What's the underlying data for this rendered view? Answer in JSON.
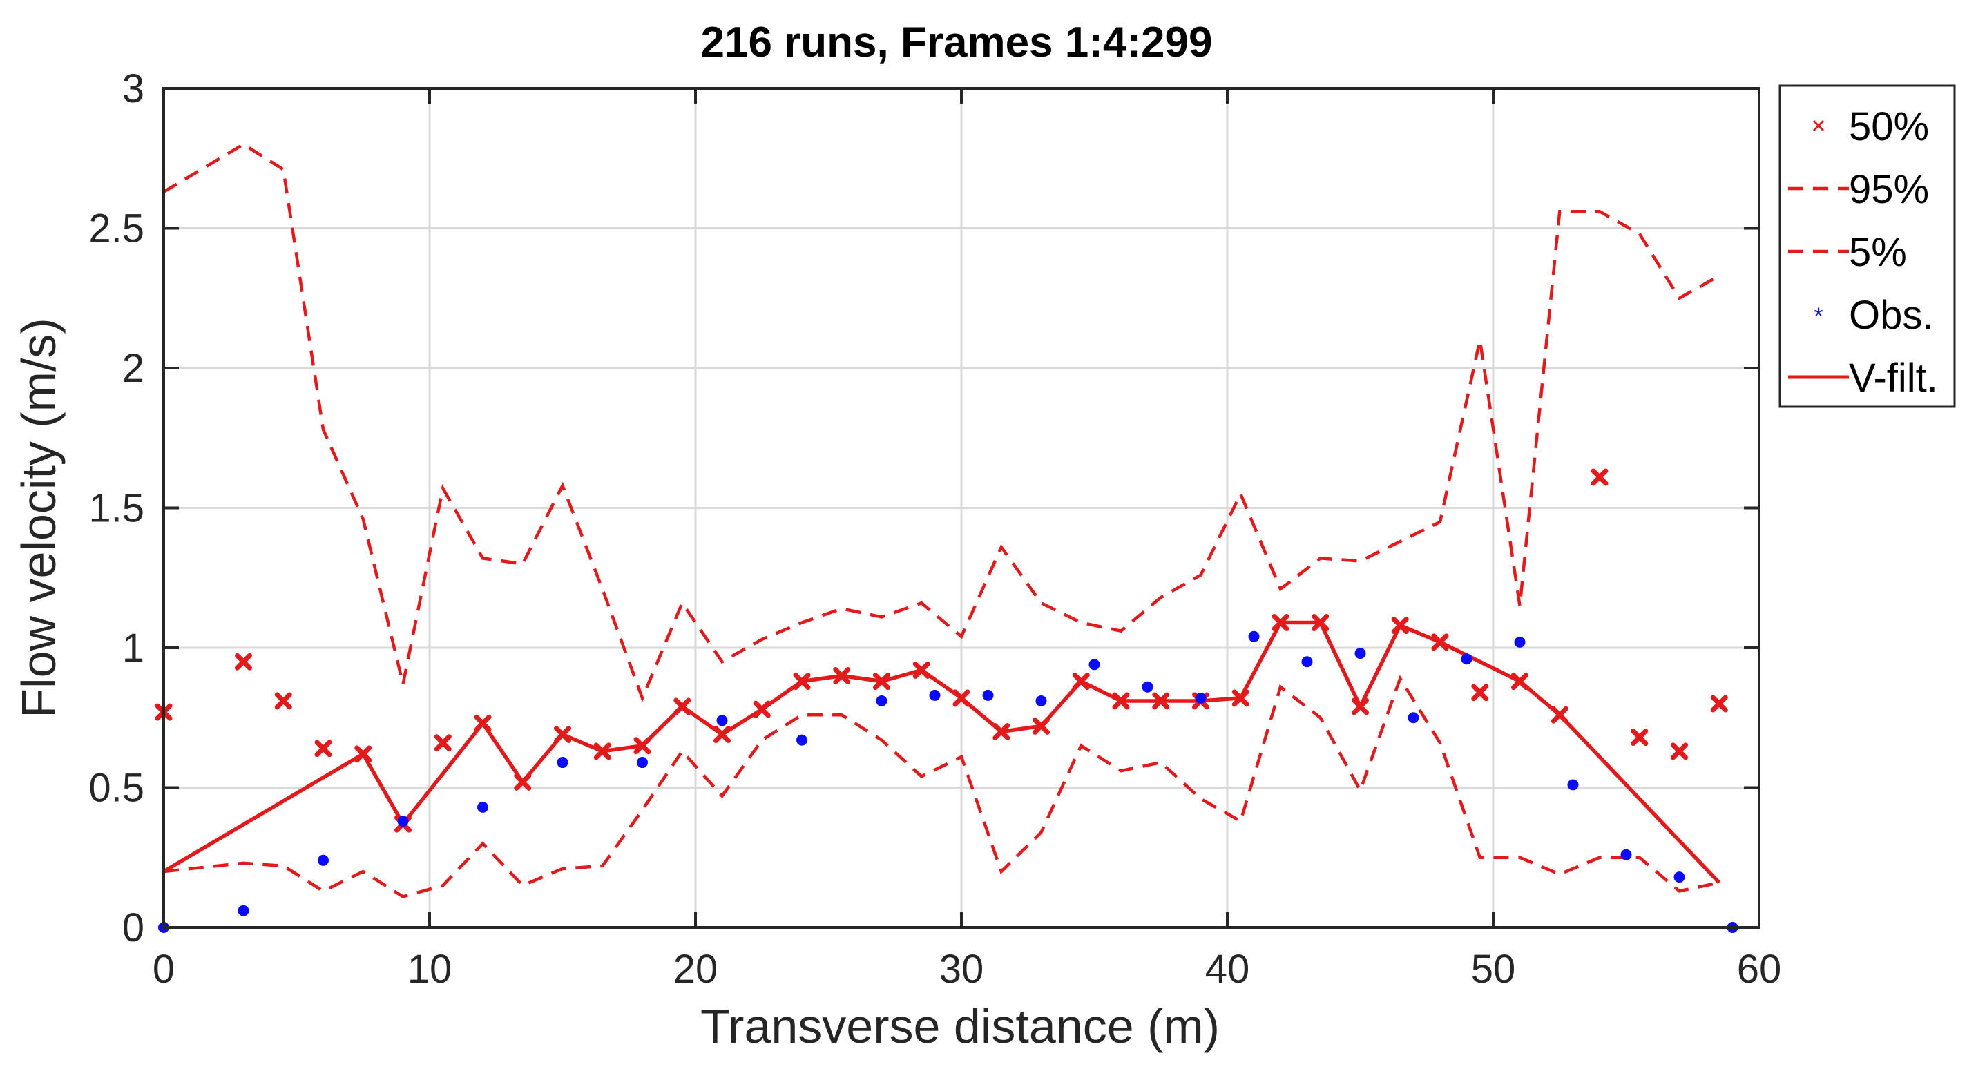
{
  "chart_data": {
    "type": "line",
    "title": "216 runs, Frames 1:4:299",
    "xlabel": "Transverse distance (m)",
    "ylabel": "Flow velocity (m/s)",
    "xlim": [
      0,
      60
    ],
    "ylim": [
      0,
      3
    ],
    "xticks": [
      0,
      10,
      20,
      30,
      40,
      50,
      60
    ],
    "yticks": [
      0,
      0.5,
      1,
      1.5,
      2,
      2.5,
      3
    ],
    "xtick_labels": [
      "0",
      "10",
      "20",
      "30",
      "40",
      "50",
      "60"
    ],
    "ytick_labels": [
      "0",
      "0.5",
      "1",
      "1.5",
      "2",
      "2.5",
      "3"
    ],
    "grid": true,
    "legend_position": "outside-top-right",
    "colors": {
      "red": "#e31a1c",
      "blue": "#0a0aff"
    },
    "legend": [
      {
        "label": "50%",
        "style": "x-marker",
        "color": "#e31a1c"
      },
      {
        "label": "95%",
        "style": "dashed",
        "color": "#e31a1c"
      },
      {
        "label": "5%",
        "style": "dashed",
        "color": "#e31a1c"
      },
      {
        "label": "Obs.",
        "style": "asterisk",
        "color": "#0a0aff"
      },
      {
        "label": "V-filt.",
        "style": "solid",
        "color": "#e31a1c"
      }
    ],
    "series": [
      {
        "name": "50%",
        "x": [
          0,
          3,
          4.5,
          6,
          7.5,
          9,
          10.5,
          12,
          13.5,
          15,
          16.5,
          18,
          19.5,
          21,
          22.5,
          24,
          25.5,
          27,
          28.5,
          30,
          31.5,
          33,
          34.5,
          36,
          37.5,
          39,
          40.5,
          42,
          43.5,
          45,
          46.5,
          48,
          49.5,
          51,
          52.5,
          54,
          55.5,
          57,
          58.5
        ],
        "y": [
          0.77,
          0.95,
          0.81,
          0.64,
          0.62,
          0.37,
          0.66,
          0.73,
          0.52,
          0.69,
          0.63,
          0.65,
          0.79,
          0.69,
          0.78,
          0.88,
          0.9,
          0.88,
          0.92,
          0.82,
          0.7,
          0.72,
          0.88,
          0.81,
          0.81,
          0.81,
          0.82,
          1.09,
          1.09,
          0.79,
          1.08,
          1.02,
          0.84,
          0.88,
          0.76,
          1.61,
          0.68,
          0.63,
          0.8
        ]
      },
      {
        "name": "95%",
        "x": [
          0,
          3,
          4.5,
          6,
          7.5,
          9,
          10.5,
          12,
          13.5,
          15,
          16.5,
          18,
          19.5,
          21,
          22.5,
          24,
          25.5,
          27,
          28.5,
          30,
          31.5,
          33,
          34.5,
          36,
          37.5,
          39,
          40.5,
          42,
          43.5,
          45,
          46.5,
          48,
          49.5,
          51,
          52.5,
          54,
          55.5,
          57,
          58.5
        ],
        "y": [
          2.63,
          2.8,
          2.71,
          1.78,
          1.46,
          0.87,
          1.57,
          1.32,
          1.3,
          1.58,
          1.21,
          0.82,
          1.16,
          0.95,
          1.03,
          1.09,
          1.14,
          1.11,
          1.16,
          1.04,
          1.36,
          1.16,
          1.09,
          1.06,
          1.18,
          1.26,
          1.55,
          1.21,
          1.32,
          1.31,
          1.38,
          1.45,
          2.1,
          1.15,
          2.56,
          2.56,
          2.48,
          2.25,
          2.33
        ]
      },
      {
        "name": "5%",
        "x": [
          0,
          3,
          4.5,
          6,
          7.5,
          9,
          10.5,
          12,
          13.5,
          15,
          16.5,
          18,
          19.5,
          21,
          22.5,
          24,
          25.5,
          27,
          28.5,
          30,
          31.5,
          33,
          34.5,
          36,
          37.5,
          39,
          40.5,
          42,
          43.5,
          45,
          46.5,
          48,
          49.5,
          51,
          52.5,
          54,
          55.5,
          57,
          58.5
        ],
        "y": [
          0.2,
          0.23,
          0.22,
          0.13,
          0.2,
          0.11,
          0.15,
          0.3,
          0.15,
          0.21,
          0.22,
          0.42,
          0.63,
          0.47,
          0.67,
          0.76,
          0.76,
          0.67,
          0.54,
          0.61,
          0.2,
          0.34,
          0.65,
          0.56,
          0.59,
          0.46,
          0.38,
          0.86,
          0.75,
          0.49,
          0.89,
          0.66,
          0.25,
          0.25,
          0.19,
          0.25,
          0.25,
          0.13,
          0.16
        ]
      },
      {
        "name": "Obs.",
        "x": [
          0,
          3,
          6,
          9,
          12,
          15,
          18,
          21,
          24,
          27,
          29,
          31,
          33,
          35,
          37,
          39,
          41,
          43,
          45,
          47,
          49,
          51,
          53,
          55,
          57,
          59
        ],
        "y": [
          0.0,
          0.06,
          0.24,
          0.38,
          0.43,
          0.59,
          0.59,
          0.74,
          0.67,
          0.81,
          0.83,
          0.83,
          0.81,
          0.94,
          0.86,
          0.82,
          1.04,
          0.95,
          0.98,
          0.75,
          0.96,
          1.02,
          0.51,
          0.26,
          0.18,
          0.0
        ]
      },
      {
        "name": "V-filt.",
        "x": [
          0,
          7.5,
          9,
          12,
          13.5,
          15,
          16.5,
          18,
          19.5,
          21,
          22.5,
          24,
          25.5,
          27,
          28.5,
          30,
          31.5,
          33,
          34.5,
          36,
          37.5,
          39,
          40.5,
          42,
          43.5,
          45,
          46.5,
          48,
          51,
          52.5,
          58.5
        ],
        "y": [
          0.2,
          0.62,
          0.37,
          0.73,
          0.52,
          0.69,
          0.63,
          0.65,
          0.79,
          0.69,
          0.78,
          0.88,
          0.9,
          0.88,
          0.92,
          0.82,
          0.7,
          0.72,
          0.88,
          0.81,
          0.81,
          0.81,
          0.82,
          1.09,
          1.09,
          0.79,
          1.08,
          1.02,
          0.88,
          0.76,
          0.16
        ]
      }
    ]
  }
}
